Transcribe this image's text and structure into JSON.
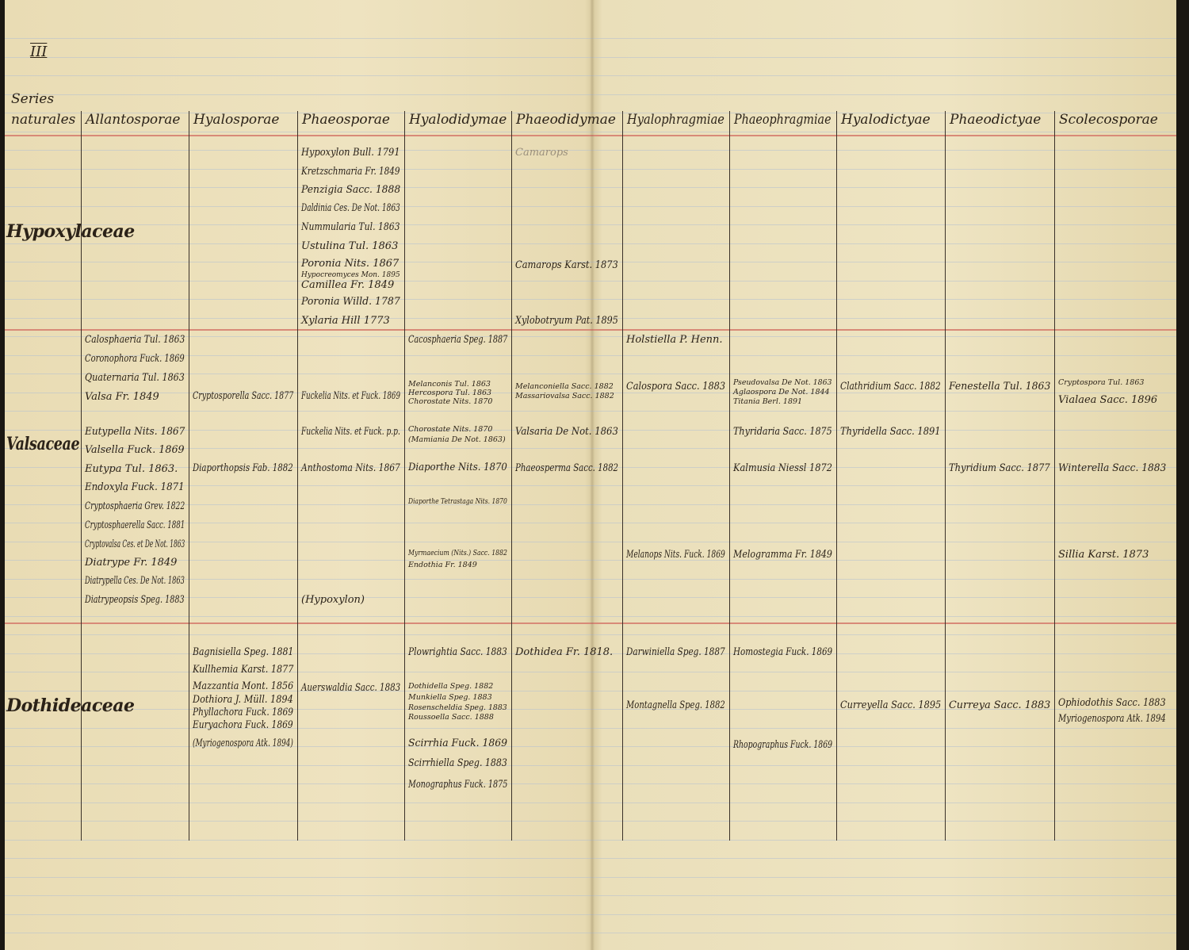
{
  "sheet_number": "III",
  "header": {
    "series_label": [
      "Series",
      "naturales"
    ],
    "columns": [
      "Allantosporae",
      "Hyalosporae",
      "Phaeosporae",
      "Hyalodidymae",
      "Phaeodidymae",
      "Hyalophragmiae",
      "Phaeophragmiae",
      "Hyalodictyae",
      "Phaeodictyae",
      "Scolecosporae"
    ]
  },
  "colors": {
    "paper": "#eadfb8",
    "ink": "#2b2218",
    "red_rule": "#d88a78",
    "blue_rule": "#b9c3cf"
  },
  "families": [
    {
      "name": "Hypoxylaceae",
      "entries": [
        {
          "column": 2,
          "text": "Hypoxylon Bull. 1791"
        },
        {
          "column": 2,
          "text": "Kretzschmaria Fr. 1849"
        },
        {
          "column": 2,
          "text": "Penzigia Sacc. 1888"
        },
        {
          "column": 2,
          "text": "Daldinia Ces. De Not. 1863"
        },
        {
          "column": 2,
          "text": "Nummularia Tul. 1863"
        },
        {
          "column": 2,
          "text": "Ustulina Tul. 1863"
        },
        {
          "column": 2,
          "text": "Poronia Nits. 1867"
        },
        {
          "column": 2,
          "text": "Hypocreomyces Mon. 1895"
        },
        {
          "column": 2,
          "text": "Camillea Fr. 1849"
        },
        {
          "column": 2,
          "text": "Poronia Willd. 1787"
        },
        {
          "column": 2,
          "text": "Xylaria Hill 1773"
        },
        {
          "column": 4,
          "text": "Camarops"
        },
        {
          "column": 4,
          "text": "Camarops Karst. 1873"
        },
        {
          "column": 4,
          "text": "Xylobotryum Pat. 1895"
        }
      ]
    },
    {
      "name": "Valsaceae",
      "entries": [
        {
          "column": 0,
          "text": "Calosphaeria Tul. 1863"
        },
        {
          "column": 0,
          "text": "Coronophora Fuck. 1869"
        },
        {
          "column": 0,
          "text": "Quaternaria Tul. 1863"
        },
        {
          "column": 0,
          "text": "Valsa Fr. 1849"
        },
        {
          "column": 0,
          "text": "Eutypella Nits. 1867"
        },
        {
          "column": 0,
          "text": "Valsella Fuck. 1869"
        },
        {
          "column": 0,
          "text": "Eutypa Tul. 1863."
        },
        {
          "column": 0,
          "text": "Endoxyla Fuck. 1871"
        },
        {
          "column": 0,
          "text": "Cryptosphaeria Grev. 1822"
        },
        {
          "column": 0,
          "text": "Cryptosphaerella Sacc. 1881"
        },
        {
          "column": 0,
          "text": "Cryptovalsa Ces. et De Not. 1863"
        },
        {
          "column": 0,
          "text": "Diatrype Fr. 1849"
        },
        {
          "column": 0,
          "text": "Diatrypella Ces. De Not. 1863"
        },
        {
          "column": 0,
          "text": "Diatrypeopsis Speg. 1883"
        },
        {
          "column": 1,
          "text": "Cryptosporella Sacc. 1877"
        },
        {
          "column": 1,
          "text": "Diaporthopsis Fab. 1882"
        },
        {
          "column": 2,
          "text": "Fuckelia Nits. et Fuck. 1869"
        },
        {
          "column": 2,
          "text": "Fuckelia Nits. et Fuck. p.p."
        },
        {
          "column": 2,
          "text": "Anthostoma Nits. 1867"
        },
        {
          "column": 2,
          "text": "(Hypoxylon)"
        },
        {
          "column": 3,
          "text": "Cacosphaeria Speg. 1887"
        },
        {
          "column": 3,
          "text": "Melanconis Tul. 1863"
        },
        {
          "column": 3,
          "text": "Hercospora Tul. 1863"
        },
        {
          "column": 3,
          "text": "Chorostate Nits. 1870"
        },
        {
          "column": 3,
          "text": "Chorostate Nits. 1870"
        },
        {
          "column": 3,
          "text": "(Mamiania De Not. 1863)"
        },
        {
          "column": 3,
          "text": "Diaporthe Nits. 1870"
        },
        {
          "column": 3,
          "text": "Diaporthe Tetrastaga Nits. 1870"
        },
        {
          "column": 3,
          "text": "Myrmaecium (Nits.) Sacc. 1882"
        },
        {
          "column": 3,
          "text": "Endothia Fr. 1849"
        },
        {
          "column": 4,
          "text": "Melanconiella Sacc. 1882"
        },
        {
          "column": 4,
          "text": "Massariovalsa Sacc. 1882"
        },
        {
          "column": 4,
          "text": "Valsaria De Not. 1863"
        },
        {
          "column": 4,
          "text": "Phaeosperma Sacc. 1882"
        },
        {
          "column": 5,
          "text": "Holstiella P. Henn."
        },
        {
          "column": 5,
          "text": "Calospora Sacc. 1883"
        },
        {
          "column": 5,
          "text": "Melanops Nits. Fuck. 1869"
        },
        {
          "column": 6,
          "text": "Pseudovalsa De Not. 1863"
        },
        {
          "column": 6,
          "text": "Aglaospora De Not. 1844"
        },
        {
          "column": 6,
          "text": "Titania Berl. 1891"
        },
        {
          "column": 6,
          "text": "Thyridaria Sacc. 1875"
        },
        {
          "column": 6,
          "text": "Kalmusia Niessl 1872"
        },
        {
          "column": 6,
          "text": "Melogramma Fr. 1849"
        },
        {
          "column": 7,
          "text": "Clathridium Sacc. 1882"
        },
        {
          "column": 7,
          "text": "Thyridella Sacc. 1891"
        },
        {
          "column": 8,
          "text": "Fenestella Tul. 1863"
        },
        {
          "column": 8,
          "text": "Thyridium Sacc. 1877"
        },
        {
          "column": 9,
          "text": "Cryptospora Tul. 1863"
        },
        {
          "column": 9,
          "text": "Vialaea Sacc. 1896"
        },
        {
          "column": 9,
          "text": "Winterella Sacc. 1883"
        },
        {
          "column": 9,
          "text": "Sillia Karst. 1873"
        }
      ]
    },
    {
      "name": "Dothideaceae",
      "entries": [
        {
          "column": 1,
          "text": "Bagnisiella Speg. 1881"
        },
        {
          "column": 1,
          "text": "Kullhemia Karst. 1877"
        },
        {
          "column": 1,
          "text": "Mazzantia Mont. 1856"
        },
        {
          "column": 1,
          "text": "Dothiora J. Müll. 1894"
        },
        {
          "column": 1,
          "text": "Phyllachora Fuck. 1869"
        },
        {
          "column": 1,
          "text": "Euryachora Fuck. 1869"
        },
        {
          "column": 1,
          "text": "(Myriogenospora Atk. 1894)"
        },
        {
          "column": 2,
          "text": "Auerswaldia Sacc. 1883"
        },
        {
          "column": 3,
          "text": "Plowrightia Sacc. 1883"
        },
        {
          "column": 3,
          "text": "Dothidella Speg. 1882"
        },
        {
          "column": 3,
          "text": "Munkiella Speg. 1883"
        },
        {
          "column": 3,
          "text": "Rosenscheldia Speg. 1883"
        },
        {
          "column": 3,
          "text": "Roussoella Sacc. 1888"
        },
        {
          "column": 3,
          "text": "Scirrhia Fuck. 1869"
        },
        {
          "column": 3,
          "text": "Scirrhiella Speg. 1883"
        },
        {
          "column": 3,
          "text": "Monographus Fuck. 1875"
        },
        {
          "column": 4,
          "text": "Dothidea Fr. 1818."
        },
        {
          "column": 5,
          "text": "Darwiniella Speg. 1887"
        },
        {
          "column": 5,
          "text": "Montagnella Speg. 1882"
        },
        {
          "column": 6,
          "text": "Homostegia Fuck. 1869"
        },
        {
          "column": 6,
          "text": "Rhopographus Fuck. 1869"
        },
        {
          "column": 7,
          "text": "Curreyella Sacc. 1895"
        },
        {
          "column": 8,
          "text": "Curreya Sacc. 1883"
        },
        {
          "column": 9,
          "text": "Ophiodothis Sacc. 1883"
        },
        {
          "column": 9,
          "text": "Myriogenospora Atk. 1894"
        }
      ]
    }
  ]
}
